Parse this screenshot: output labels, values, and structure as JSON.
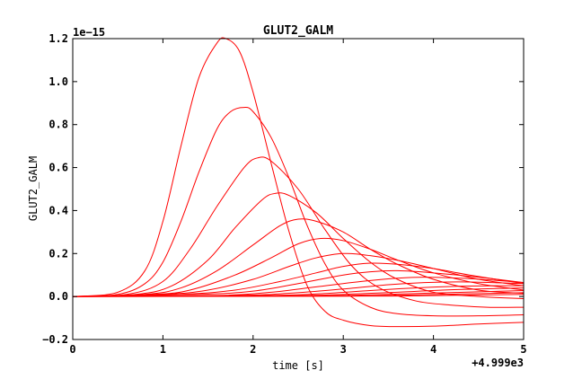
{
  "chart_data": {
    "type": "line",
    "title": "GLUT2_GALM",
    "xlabel": "time [s]",
    "ylabel": "GLUT2_GALM",
    "y_multiplier_label": "1e−15",
    "x_offset_label": "+4.999e3",
    "xlim": [
      0,
      5
    ],
    "ylim": [
      -0.2,
      1.2
    ],
    "x_ticks": [
      0,
      1,
      2,
      3,
      4,
      5
    ],
    "x_tick_labels": [
      "0",
      "1",
      "2",
      "3",
      "4",
      "5"
    ],
    "y_ticks": [
      -0.2,
      0.0,
      0.2,
      0.4,
      0.6,
      0.8,
      1.0,
      1.2
    ],
    "y_tick_labels": [
      "−0.2",
      "0.0",
      "0.2",
      "0.4",
      "0.6",
      "0.8",
      "1.0",
      "1.2"
    ],
    "grid": false,
    "legend": "none",
    "line_color": "#ff0000",
    "series": [
      {
        "x": [
          0,
          0.5,
          0.8,
          1.0,
          1.2,
          1.4,
          1.6,
          1.7,
          1.85,
          2.0,
          2.2,
          2.4,
          2.6,
          2.8,
          3.0,
          3.3,
          3.6,
          4.0,
          4.5,
          5.0
        ],
        "values": [
          0,
          0.02,
          0.12,
          0.35,
          0.7,
          1.02,
          1.18,
          1.2,
          1.14,
          0.95,
          0.62,
          0.3,
          0.05,
          -0.07,
          -0.11,
          -0.135,
          -0.14,
          -0.138,
          -0.128,
          -0.12
        ]
      },
      {
        "x": [
          0,
          0.5,
          0.8,
          1.0,
          1.2,
          1.4,
          1.6,
          1.75,
          1.9,
          2.0,
          2.2,
          2.4,
          2.6,
          2.8,
          3.0,
          3.3,
          3.6,
          4.0,
          4.5,
          5.0
        ],
        "values": [
          0,
          0.01,
          0.06,
          0.16,
          0.35,
          0.58,
          0.78,
          0.86,
          0.88,
          0.86,
          0.74,
          0.55,
          0.33,
          0.15,
          0.03,
          -0.05,
          -0.08,
          -0.09,
          -0.09,
          -0.085
        ]
      },
      {
        "x": [
          0,
          0.6,
          1.0,
          1.3,
          1.6,
          1.9,
          2.05,
          2.2,
          2.5,
          2.8,
          3.1,
          3.4,
          3.8,
          4.2,
          4.6,
          5.0
        ],
        "values": [
          0,
          0.01,
          0.07,
          0.22,
          0.42,
          0.6,
          0.645,
          0.63,
          0.5,
          0.31,
          0.14,
          0.04,
          -0.02,
          -0.04,
          -0.05,
          -0.05
        ]
      },
      {
        "x": [
          0,
          0.7,
          1.1,
          1.5,
          1.8,
          2.1,
          2.25,
          2.4,
          2.7,
          3.0,
          3.3,
          3.6,
          4.0,
          4.5,
          5.0
        ],
        "values": [
          0,
          0.01,
          0.05,
          0.17,
          0.32,
          0.45,
          0.48,
          0.47,
          0.39,
          0.27,
          0.16,
          0.08,
          0.02,
          0.0,
          -0.01
        ]
      },
      {
        "x": [
          0,
          0.8,
          1.2,
          1.6,
          2.0,
          2.3,
          2.5,
          2.7,
          3.0,
          3.3,
          3.6,
          4.0,
          4.5,
          5.0
        ],
        "values": [
          0,
          0.01,
          0.04,
          0.12,
          0.24,
          0.33,
          0.36,
          0.35,
          0.3,
          0.22,
          0.15,
          0.08,
          0.03,
          0.015
        ]
      },
      {
        "x": [
          0,
          0.9,
          1.3,
          1.8,
          2.2,
          2.5,
          2.75,
          3.0,
          3.3,
          3.6,
          4.0,
          4.5,
          5.0
        ],
        "values": [
          0,
          0.01,
          0.03,
          0.1,
          0.18,
          0.245,
          0.27,
          0.26,
          0.22,
          0.17,
          0.11,
          0.06,
          0.03
        ]
      },
      {
        "x": [
          0,
          1.0,
          1.5,
          2.0,
          2.4,
          2.7,
          3.0,
          3.3,
          3.7,
          4.1,
          4.5,
          5.0
        ],
        "values": [
          0,
          0.01,
          0.03,
          0.08,
          0.14,
          0.18,
          0.2,
          0.19,
          0.16,
          0.12,
          0.08,
          0.05
        ]
      },
      {
        "x": [
          0,
          1.2,
          1.8,
          2.3,
          2.7,
          3.0,
          3.3,
          3.6,
          4.0,
          4.4,
          5.0
        ],
        "values": [
          0,
          0.01,
          0.03,
          0.07,
          0.11,
          0.14,
          0.155,
          0.15,
          0.13,
          0.1,
          0.06
        ]
      },
      {
        "x": [
          0,
          1.4,
          2.0,
          2.5,
          3.0,
          3.3,
          3.6,
          4.0,
          4.5,
          5.0
        ],
        "values": [
          0,
          0.01,
          0.025,
          0.06,
          0.1,
          0.115,
          0.12,
          0.11,
          0.09,
          0.065
        ]
      },
      {
        "x": [
          0,
          1.6,
          2.2,
          2.7,
          3.2,
          3.6,
          3.9,
          4.3,
          4.7,
          5.0
        ],
        "values": [
          0,
          0.005,
          0.02,
          0.045,
          0.07,
          0.085,
          0.09,
          0.085,
          0.075,
          0.065
        ]
      },
      {
        "x": [
          0,
          1.8,
          2.4,
          3.0,
          3.5,
          3.9,
          4.3,
          4.7,
          5.0
        ],
        "values": [
          0,
          0.005,
          0.015,
          0.035,
          0.055,
          0.065,
          0.068,
          0.064,
          0.06
        ]
      },
      {
        "x": [
          0,
          2.0,
          2.7,
          3.3,
          3.8,
          4.3,
          4.7,
          5.0
        ],
        "values": [
          0,
          0.004,
          0.012,
          0.028,
          0.04,
          0.048,
          0.05,
          0.05
        ]
      },
      {
        "x": [
          0,
          2.3,
          3.0,
          3.6,
          4.1,
          4.6,
          5.0
        ],
        "values": [
          0,
          0.003,
          0.01,
          0.02,
          0.03,
          0.036,
          0.04
        ]
      },
      {
        "x": [
          0,
          2.6,
          3.3,
          3.9,
          4.5,
          5.0
        ],
        "values": [
          0,
          0.003,
          0.008,
          0.015,
          0.022,
          0.028
        ]
      },
      {
        "x": [
          0,
          2.9,
          3.6,
          4.2,
          4.7,
          5.0
        ],
        "values": [
          0,
          0.002,
          0.006,
          0.011,
          0.015,
          0.018
        ]
      },
      {
        "x": [
          0,
          3.2,
          3.9,
          4.5,
          5.0
        ],
        "values": [
          0,
          0.002,
          0.004,
          0.007,
          0.01
        ]
      }
    ]
  }
}
